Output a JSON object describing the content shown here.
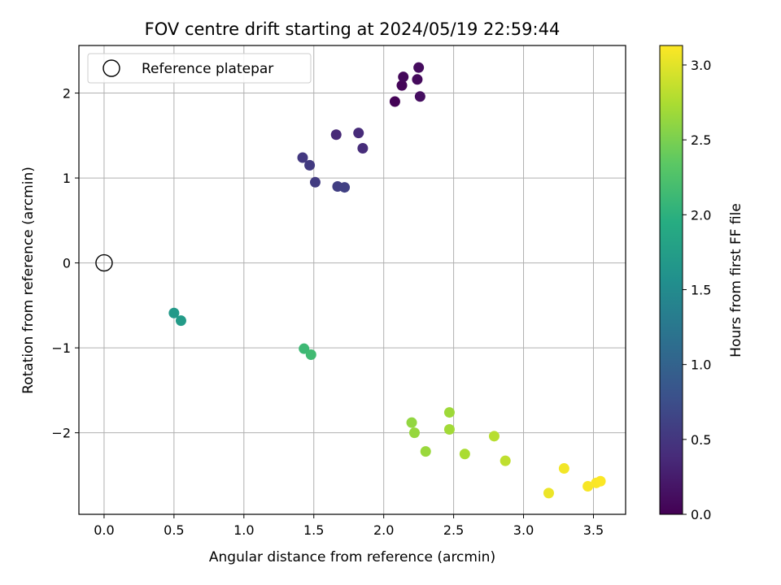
{
  "chart_data": {
    "type": "scatter",
    "title": "FOV centre drift starting at 2024/05/19 22:59:44",
    "xlabel": "Angular distance from reference (arcmin)",
    "ylabel": "Rotation from reference (arcmin)",
    "xlim": [
      -0.18,
      3.73
    ],
    "ylim": [
      -2.96,
      2.56
    ],
    "xticks": [
      0.0,
      0.5,
      1.0,
      1.5,
      2.0,
      2.5,
      3.0,
      3.5
    ],
    "xtick_labels": [
      "0.0",
      "0.5",
      "1.0",
      "1.5",
      "2.0",
      "2.5",
      "3.0",
      "3.5"
    ],
    "yticks": [
      -2,
      -1,
      0,
      1,
      2
    ],
    "ytick_labels": [
      "−2",
      "−1",
      "0",
      "1",
      "2"
    ],
    "grid": true,
    "legend": {
      "placement": "top-left",
      "entries": [
        "Reference platepar"
      ]
    },
    "reference_point": {
      "label": "Reference platepar",
      "x": 0.0,
      "y": 0.0
    },
    "colorbar": {
      "label": "Hours from first FF file",
      "colormap": "viridis",
      "range": [
        0.0,
        3.13
      ],
      "ticks": [
        0.0,
        0.5,
        1.0,
        1.5,
        2.0,
        2.5,
        3.0
      ],
      "tick_labels": [
        "0.0",
        "0.5",
        "1.0",
        "1.5",
        "2.0",
        "2.5",
        "3.0"
      ]
    },
    "points": [
      {
        "x": 2.08,
        "y": 1.9,
        "hours": 0.02
      },
      {
        "x": 2.13,
        "y": 2.09,
        "hours": 0.04
      },
      {
        "x": 2.14,
        "y": 2.19,
        "hours": 0.06
      },
      {
        "x": 2.24,
        "y": 2.16,
        "hours": 0.08
      },
      {
        "x": 2.25,
        "y": 2.3,
        "hours": 0.1
      },
      {
        "x": 2.26,
        "y": 1.96,
        "hours": 0.12
      },
      {
        "x": 1.66,
        "y": 1.51,
        "hours": 0.36
      },
      {
        "x": 1.82,
        "y": 1.53,
        "hours": 0.38
      },
      {
        "x": 1.85,
        "y": 1.35,
        "hours": 0.4
      },
      {
        "x": 1.42,
        "y": 1.24,
        "hours": 0.52
      },
      {
        "x": 1.47,
        "y": 1.15,
        "hours": 0.54
      },
      {
        "x": 1.51,
        "y": 0.95,
        "hours": 0.56
      },
      {
        "x": 1.67,
        "y": 0.9,
        "hours": 0.58
      },
      {
        "x": 1.72,
        "y": 0.89,
        "hours": 0.6
      },
      {
        "x": 0.5,
        "y": -0.59,
        "hours": 1.68
      },
      {
        "x": 0.55,
        "y": -0.68,
        "hours": 1.72
      },
      {
        "x": 1.43,
        "y": -1.01,
        "hours": 2.12
      },
      {
        "x": 1.48,
        "y": -1.08,
        "hours": 2.15
      },
      {
        "x": 2.2,
        "y": -1.88,
        "hours": 2.62
      },
      {
        "x": 2.22,
        "y": -2.0,
        "hours": 2.64
      },
      {
        "x": 2.3,
        "y": -2.22,
        "hours": 2.66
      },
      {
        "x": 2.47,
        "y": -1.76,
        "hours": 2.68
      },
      {
        "x": 2.47,
        "y": -1.96,
        "hours": 2.7
      },
      {
        "x": 2.58,
        "y": -2.25,
        "hours": 2.74
      },
      {
        "x": 2.79,
        "y": -2.04,
        "hours": 2.8
      },
      {
        "x": 2.87,
        "y": -2.33,
        "hours": 2.84
      },
      {
        "x": 3.18,
        "y": -2.71,
        "hours": 3.05
      },
      {
        "x": 3.29,
        "y": -2.42,
        "hours": 3.08
      },
      {
        "x": 3.46,
        "y": -2.63,
        "hours": 3.1
      },
      {
        "x": 3.52,
        "y": -2.59,
        "hours": 3.11
      },
      {
        "x": 3.55,
        "y": -2.57,
        "hours": 3.12
      }
    ]
  }
}
